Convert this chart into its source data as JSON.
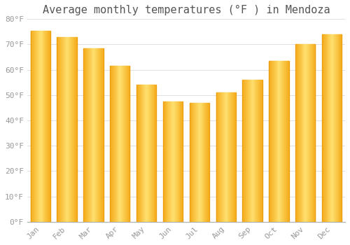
{
  "title": "Average monthly temperatures (°F ) in Mendoza",
  "months": [
    "Jan",
    "Feb",
    "Mar",
    "Apr",
    "May",
    "Jun",
    "Jul",
    "Aug",
    "Sep",
    "Oct",
    "Nov",
    "Dec"
  ],
  "values": [
    75.5,
    73,
    68.5,
    61.5,
    54,
    47.5,
    47,
    51,
    56,
    63.5,
    70,
    74
  ],
  "bar_color_main": "#FBB829",
  "bar_color_light": "#FFD870",
  "bar_color_dark": "#E89010",
  "ylim": [
    0,
    80
  ],
  "yticks": [
    0,
    10,
    20,
    30,
    40,
    50,
    60,
    70,
    80
  ],
  "ytick_labels": [
    "0°F",
    "10°F",
    "20°F",
    "30°F",
    "40°F",
    "50°F",
    "60°F",
    "70°F",
    "80°F"
  ],
  "background_color": "#ffffff",
  "grid_color": "#e0e0e0",
  "title_fontsize": 11,
  "tick_label_color": "#999999",
  "tick_label_fontsize": 8,
  "font_family": "monospace",
  "title_color": "#555555"
}
